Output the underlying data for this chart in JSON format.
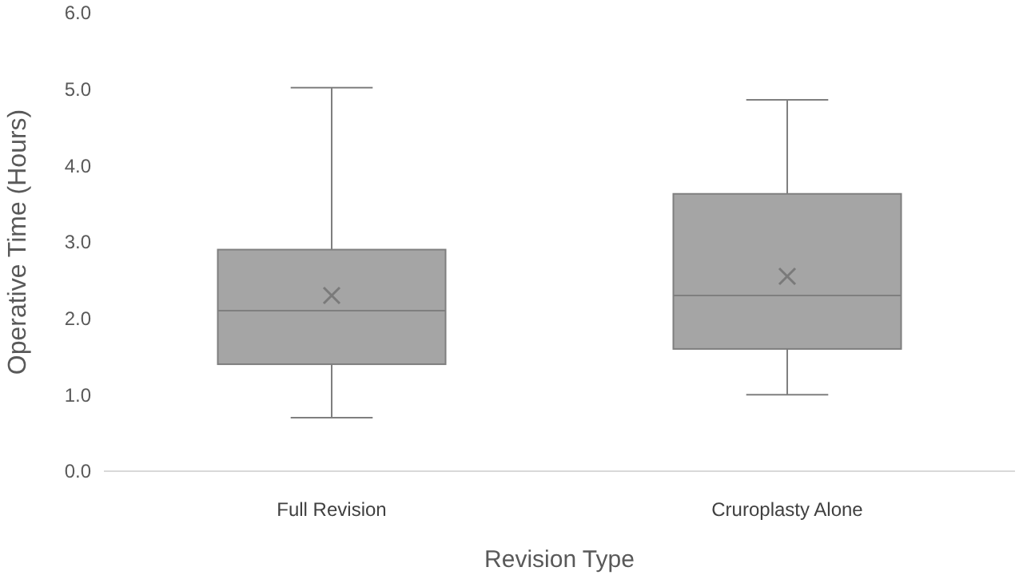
{
  "chart_data": {
    "type": "box",
    "categories": [
      "Full Revision",
      "Cruroplasty Alone"
    ],
    "boxes": [
      {
        "low": 0.7,
        "q1": 1.4,
        "median": 2.1,
        "q3": 2.9,
        "high": 5.02,
        "mean": 2.3
      },
      {
        "low": 1.0,
        "q1": 1.6,
        "median": 2.3,
        "q3": 3.63,
        "high": 4.86,
        "mean": 2.55
      }
    ],
    "color": "#a5a5a5",
    "ylabel": "Operative Time (Hours)",
    "xlabel": "Revision Type",
    "ylim": [
      0,
      6
    ],
    "yticks": [
      {
        "value": 0,
        "label": "0.0"
      },
      {
        "value": 1,
        "label": "1.0"
      },
      {
        "value": 2,
        "label": "2.0"
      },
      {
        "value": 3,
        "label": "3.0"
      },
      {
        "value": 4,
        "label": "4.0"
      },
      {
        "value": 5,
        "label": "5.0"
      },
      {
        "value": 6,
        "label": "6.0"
      }
    ],
    "grid": false,
    "marker": "cross"
  }
}
